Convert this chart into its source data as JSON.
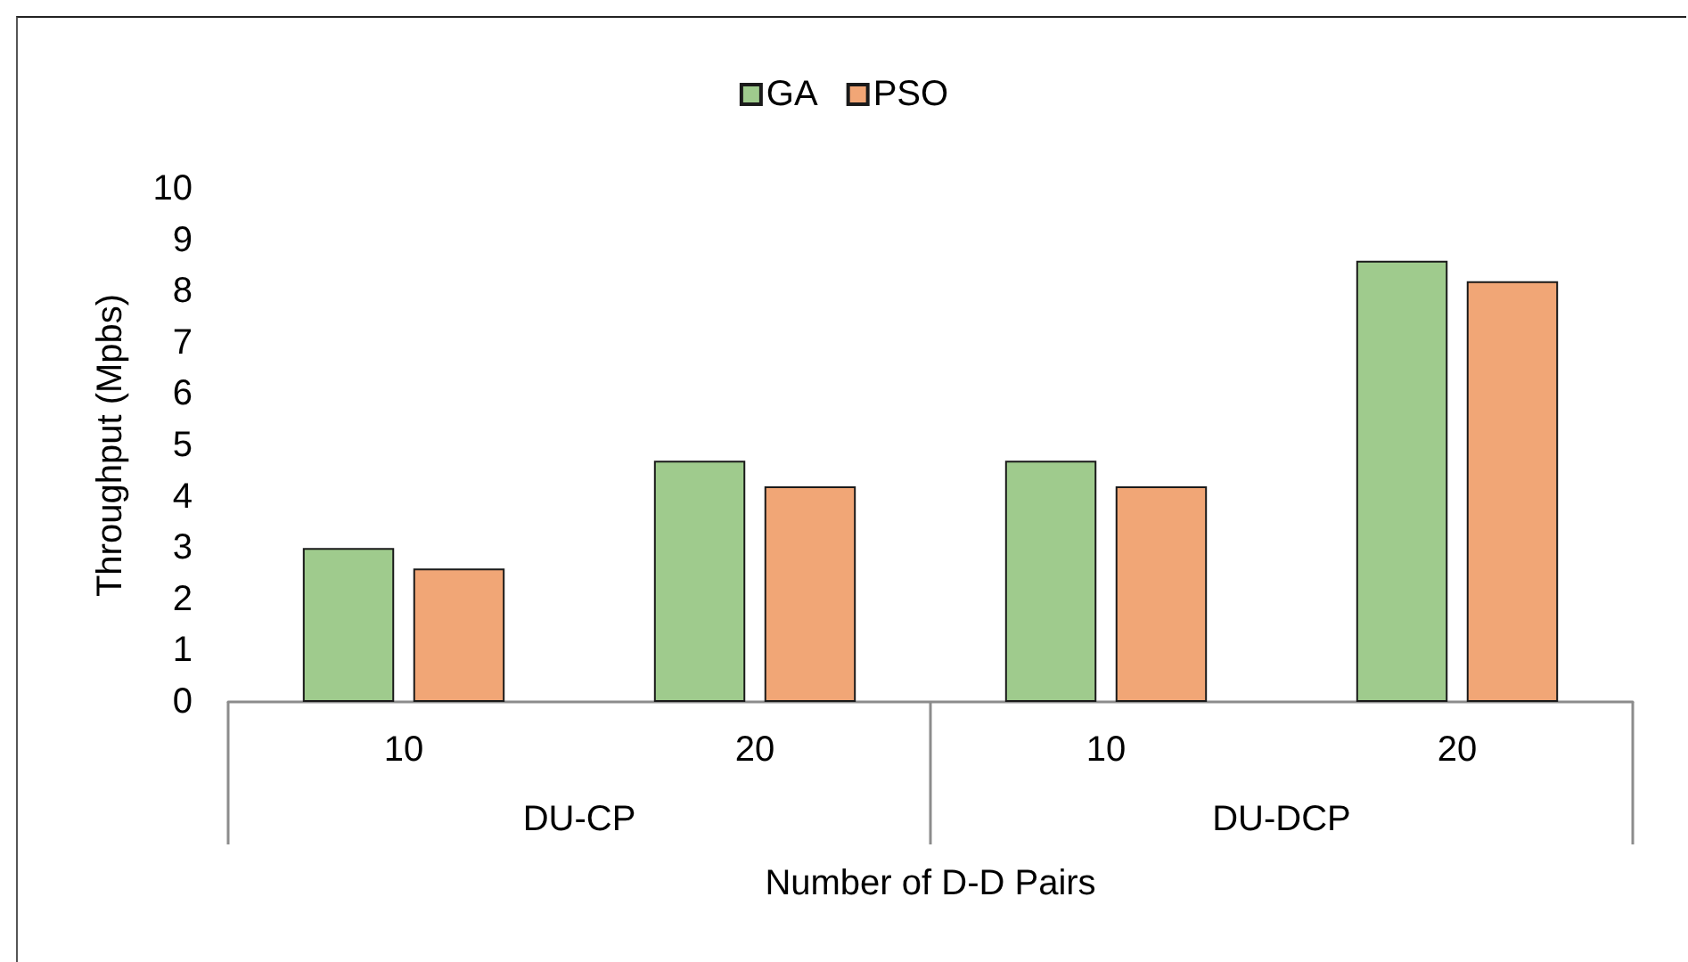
{
  "chart_data": {
    "type": "bar",
    "categories": [
      "10",
      "20",
      "10",
      "20"
    ],
    "series": [
      {
        "name": "GA",
        "color": "#9fcb8d",
        "values": [
          3.0,
          4.7,
          4.7,
          8.6
        ]
      },
      {
        "name": "PSO",
        "color": "#f1a676",
        "values": [
          2.6,
          4.2,
          4.2,
          8.2
        ]
      }
    ],
    "xlabel": "Number of D-D Pairs",
    "ylabel": "Throughput (Mpbs)",
    "annotations": [
      "DU-CP",
      "DU-DCP"
    ],
    "ylim": [
      0,
      10
    ],
    "yticks": [
      0,
      1,
      2,
      3,
      4,
      5,
      6,
      7,
      8,
      9,
      10
    ],
    "grid": false,
    "legend": "top"
  }
}
